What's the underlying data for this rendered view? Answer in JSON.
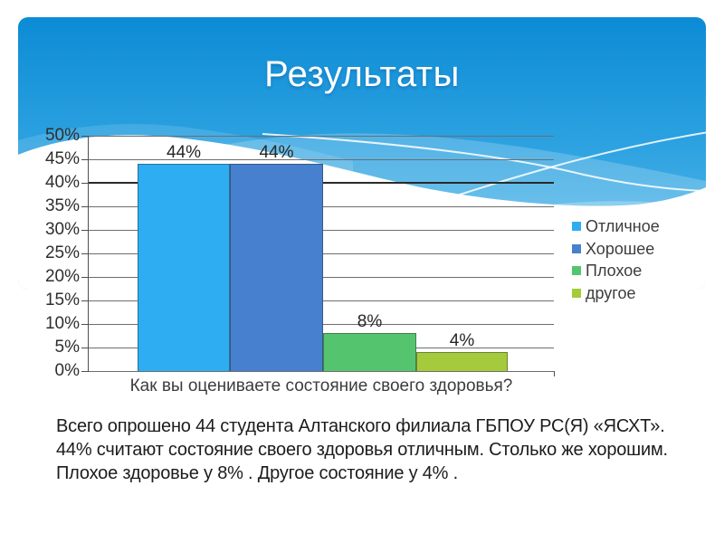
{
  "slide": {
    "title": "Результаты",
    "background": {
      "gradient_top": "#0C8BD5",
      "gradient_mid": "#2BA1E0",
      "gradient_bottom": "#60BFEC",
      "wave_color": "#ffffff"
    }
  },
  "chart_data": {
    "type": "bar",
    "categories": [
      "Отличное",
      "Хорошее",
      "Плохое",
      "другое"
    ],
    "values": [
      44,
      44,
      8,
      4
    ],
    "value_labels": [
      "44%",
      "44%",
      "8%",
      "4%"
    ],
    "xlabel": "Как вы оцениваете состояние своего здоровья?",
    "ylabel": "",
    "ylim": [
      0,
      50
    ],
    "ytick_step": 5,
    "yticks": [
      "0%",
      "5%",
      "10%",
      "15%",
      "20%",
      "25%",
      "30%",
      "35%",
      "40%",
      "45%",
      "50%"
    ],
    "emphasized_gridline": "40%",
    "grid": true,
    "legend_position": "right",
    "legend": [
      {
        "label": "Отличное",
        "color": "#2EADF2"
      },
      {
        "label": "Хорошее",
        "color": "#4680CE"
      },
      {
        "label": "Плохое",
        "color": "#55C46F"
      },
      {
        "label": "другое",
        "color": "#A4CB3B"
      }
    ]
  },
  "body_text": {
    "lines": [
      "Всего опрошено 44 студента Алтанского филиала ГБПОУ РС(Я) «ЯСХТ».",
      "44% считают состояние своего здоровья отличным. Столько же хорошим.",
      "Плохое здоровье у 8% . Другое состояние у 4% ."
    ]
  }
}
